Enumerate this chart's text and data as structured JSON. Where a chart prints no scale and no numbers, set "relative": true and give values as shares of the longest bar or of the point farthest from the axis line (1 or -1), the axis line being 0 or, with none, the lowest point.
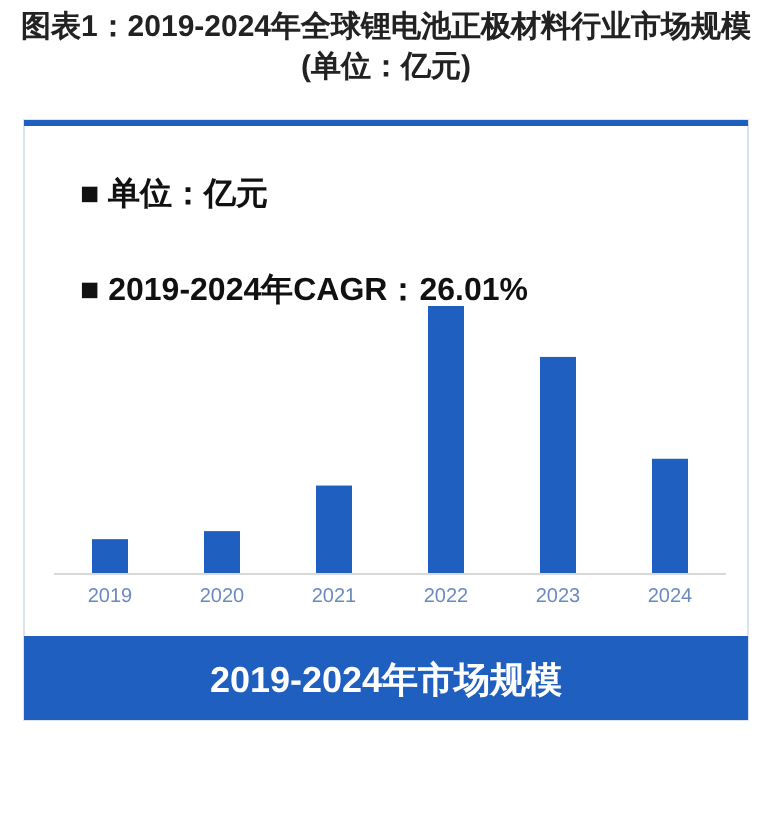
{
  "chart_data": {
    "type": "bar",
    "title": "图表1：2019-2024年全球锂电池正极材料行业市场规模(单位：亿元)",
    "categories": [
      "2019",
      "2020",
      "2021",
      "2022",
      "2023",
      "2024"
    ],
    "values": [
      0.13,
      0.16,
      0.33,
      1,
      0.81,
      0.43
    ],
    "relative": true,
    "color": "#1f5fbf",
    "annotations": [
      "■  单位：亿元",
      "■  2019-2024年CAGR：26.01%"
    ],
    "xlabel": "2019-2024年市场规模"
  }
}
